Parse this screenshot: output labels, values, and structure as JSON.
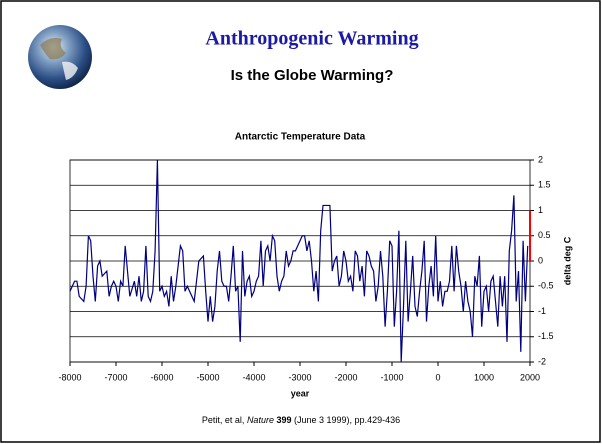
{
  "title": "Anthropogenic Warming",
  "subtitle": "Is the Globe Warming?",
  "citation": [
    "Petit, et al,",
    "Nature",
    "399",
    "(June 3 1999), pp.429-436"
  ],
  "chart_data": {
    "type": "line",
    "title": "Antarctic Temperature Data",
    "x_label": "year",
    "y_label": "delta deg C",
    "xlim": [
      -8000,
      2000
    ],
    "xticks": [
      -8000,
      -7000,
      -6000,
      -5000,
      -4000,
      -3000,
      -2000,
      -1000,
      0,
      1000,
      2000
    ],
    "ylim": [
      -2,
      2
    ],
    "yticks": [
      2,
      1.5,
      1,
      0.5,
      0,
      -0.5,
      -1,
      -1.5,
      -2
    ],
    "grid": true,
    "series": [
      {
        "color": "#000080",
        "x": [
          -8000,
          -7900,
          -7850,
          -7800,
          -7700,
          -7650,
          -7600,
          -7550,
          -7500,
          -7450,
          -7400,
          -7350,
          -7300,
          -7200,
          -7150,
          -7100,
          -7050,
          -7000,
          -6950,
          -6900,
          -6850,
          -6800,
          -6750,
          -6700,
          -6600,
          -6550,
          -6500,
          -6450,
          -6400,
          -6350,
          -6300,
          -6250,
          -6200,
          -6150,
          -6100,
          -6050,
          -6000,
          -5950,
          -5900,
          -5850,
          -5800,
          -5750,
          -5700,
          -5600,
          -5550,
          -5500,
          -5450,
          -5400,
          -5300,
          -5200,
          -5100,
          -5050,
          -5000,
          -4950,
          -4900,
          -4850,
          -4800,
          -4750,
          -4700,
          -4650,
          -4600,
          -4550,
          -4500,
          -4450,
          -4400,
          -4350,
          -4300,
          -4250,
          -4200,
          -4150,
          -4100,
          -4050,
          -4000,
          -3950,
          -3900,
          -3850,
          -3800,
          -3750,
          -3700,
          -3650,
          -3600,
          -3550,
          -3500,
          -3450,
          -3400,
          -3350,
          -3300,
          -3250,
          -3200,
          -3150,
          -3100,
          -3050,
          -3000,
          -2950,
          -2900,
          -2850,
          -2800,
          -2750,
          -2700,
          -2650,
          -2600,
          -2550,
          -2500,
          -2450,
          -2400,
          -2350,
          -2300,
          -2250,
          -2200,
          -2150,
          -2100,
          -2050,
          -2000,
          -1950,
          -1900,
          -1850,
          -1800,
          -1750,
          -1700,
          -1650,
          -1600,
          -1550,
          -1500,
          -1450,
          -1400,
          -1350,
          -1300,
          -1250,
          -1200,
          -1150,
          -1100,
          -1050,
          -1000,
          -950,
          -900,
          -850,
          -800,
          -750,
          -700,
          -650,
          -600,
          -550,
          -500,
          -450,
          -400,
          -350,
          -300,
          -250,
          -200,
          -150,
          -100,
          -50,
          0,
          50,
          100,
          150,
          200,
          250,
          300,
          350,
          400,
          450,
          500,
          550,
          600,
          650,
          700,
          750,
          800,
          850,
          900,
          950,
          1000,
          1050,
          1100,
          1150,
          1200,
          1250,
          1300,
          1350,
          1400,
          1450,
          1500,
          1550,
          1600,
          1650,
          1700,
          1750,
          1800,
          1850,
          1900,
          1950
        ],
        "values": [
          -0.6,
          -0.4,
          -0.4,
          -0.7,
          -0.8,
          -0.5,
          0.5,
          0.4,
          -0.3,
          -0.8,
          -0.1,
          0,
          -0.3,
          -0.2,
          -0.7,
          -0.5,
          -0.4,
          -0.5,
          -0.8,
          -0.4,
          -0.5,
          0.3,
          -0.2,
          -0.7,
          -0.4,
          -0.7,
          -0.3,
          -0.8,
          -0.6,
          0.3,
          -0.7,
          -0.8,
          -0.6,
          0.2,
          2.0,
          -0.6,
          -0.5,
          -0.7,
          -0.6,
          -0.9,
          -0.3,
          -0.8,
          -0.5,
          0.3,
          0.2,
          -0.6,
          -0.5,
          -0.6,
          -0.8,
          0,
          0.1,
          -0.6,
          -1.2,
          -0.7,
          -1.2,
          -0.9,
          -0.2,
          0.2,
          -0.4,
          -0.5,
          -0.5,
          -0.8,
          -0.3,
          0.3,
          -0.6,
          -0.5,
          -1.6,
          0.2,
          -0.7,
          -0.4,
          -0.3,
          -0.7,
          -0.6,
          -0.4,
          -0.3,
          0.4,
          -0.5,
          0.2,
          0.3,
          0,
          0.5,
          0.4,
          -0.3,
          -0.6,
          -0.4,
          -0.3,
          0.2,
          -0.1,
          0,
          0.2,
          0.2,
          0.3,
          0.4,
          0.5,
          0.5,
          0.2,
          0.4,
          0,
          -0.6,
          -0.2,
          -0.8,
          0.6,
          1.1,
          1.1,
          1.1,
          1.1,
          -0.2,
          0,
          0.1,
          -0.5,
          -0.3,
          0.2,
          0,
          -0.4,
          -0.3,
          -0.6,
          0.2,
          0.1,
          -0.4,
          -0.1,
          -0.7,
          0.2,
          0.1,
          -0.1,
          -0.2,
          -0.8,
          -0.5,
          0.2,
          -0.3,
          -1.3,
          -0.6,
          0.4,
          0.3,
          -1.3,
          -0.6,
          0.6,
          -2.0,
          -0.9,
          0.4,
          -1.2,
          -0.6,
          0.1,
          -0.9,
          -1.1,
          -0.6,
          -0.2,
          0.4,
          -1.2,
          -0.5,
          -0.1,
          -0.7,
          0.5,
          -0.8,
          -0.4,
          -0.9,
          -0.6,
          -0.6,
          -0.4,
          0.3,
          -0.6,
          0.3,
          -0.2,
          -0.5,
          -1.0,
          -0.4,
          -0.8,
          -1.0,
          -1.5,
          -0.3,
          -0.5,
          0.1,
          -1.3,
          -0.6,
          -0.5,
          -1.0,
          -0.4,
          -0.3,
          -0.8,
          -1.3,
          -0.3,
          -0.9,
          -0.3,
          -1.6,
          0.2,
          0.6,
          1.3,
          -0.8,
          -0.2,
          -1.8,
          0.4,
          -0.8,
          0.3
        ]
      },
      {
        "color": "#ff0000",
        "x": [
          2000,
          2000
        ],
        "values": [
          0,
          1
        ]
      }
    ]
  }
}
